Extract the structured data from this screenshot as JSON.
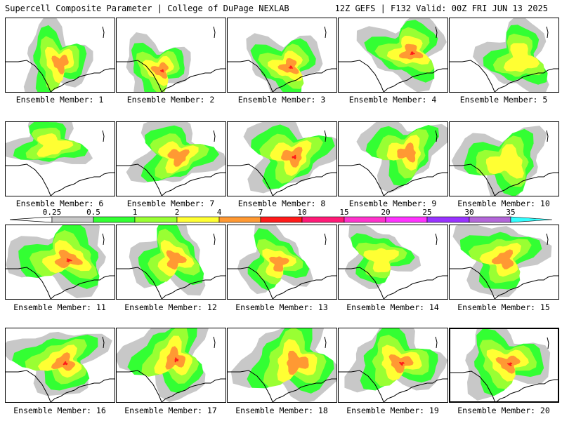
{
  "header": {
    "left_title": "Supercell Composite Parameter | College of DuPage NEXLAB",
    "right_title": "12Z GEFS | F132 Valid: 00Z FRI JUN 13 2025"
  },
  "colorbar": {
    "ticks": [
      "0.25",
      "0.5",
      "1",
      "2",
      "4",
      "7",
      "10",
      "15",
      "20",
      "25",
      "30",
      "35"
    ],
    "colors": [
      "#c8c8c8",
      "#33ff33",
      "#99ff33",
      "#ffff33",
      "#ff9933",
      "#ff1a1a",
      "#ff1a77",
      "#ff33cc",
      "#ff33ff",
      "#9933ff",
      "#b366d9",
      "#33ffff"
    ]
  },
  "members": [
    {
      "label": "Ensemble Member: 1",
      "selected": false
    },
    {
      "label": "Ensemble Member: 2",
      "selected": false
    },
    {
      "label": "Ensemble Member: 3",
      "selected": false
    },
    {
      "label": "Ensemble Member: 4",
      "selected": false
    },
    {
      "label": "Ensemble Member: 5",
      "selected": false
    },
    {
      "label": "Ensemble Member: 6",
      "selected": false
    },
    {
      "label": "Ensemble Member: 7",
      "selected": false
    },
    {
      "label": "Ensemble Member: 8",
      "selected": false
    },
    {
      "label": "Ensemble Member: 9",
      "selected": false
    },
    {
      "label": "Ensemble Member: 10",
      "selected": false
    },
    {
      "label": "Ensemble Member: 11",
      "selected": false
    },
    {
      "label": "Ensemble Member: 12",
      "selected": false
    },
    {
      "label": "Ensemble Member: 13",
      "selected": false
    },
    {
      "label": "Ensemble Member: 14",
      "selected": false
    },
    {
      "label": "Ensemble Member: 15",
      "selected": false
    },
    {
      "label": "Ensemble Member: 16",
      "selected": false
    },
    {
      "label": "Ensemble Member: 17",
      "selected": false
    },
    {
      "label": "Ensemble Member: 18",
      "selected": false
    },
    {
      "label": "Ensemble Member: 19",
      "selected": false
    },
    {
      "label": "Ensemble Member: 20",
      "selected": true
    }
  ]
}
